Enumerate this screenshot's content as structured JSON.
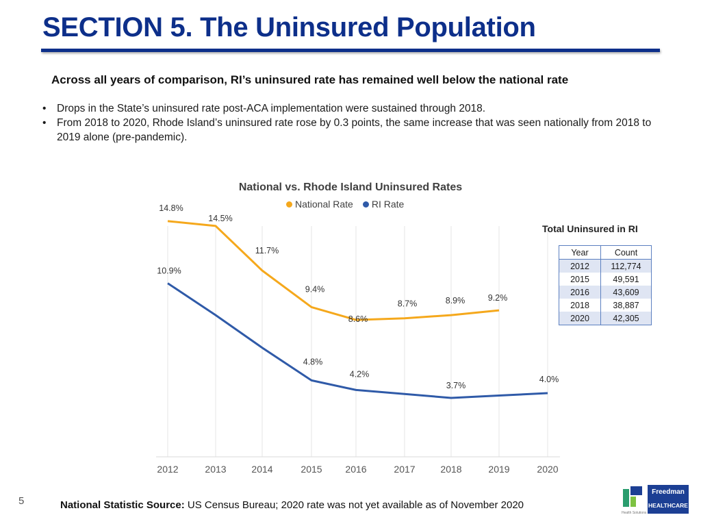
{
  "header": {
    "title": "SECTION 5. The Uninsured Population",
    "subtitle": "Across all years of comparison, RI’s uninsured rate has remained well below the national rate"
  },
  "bullets": [
    "Drops in the State’s uninsured rate post-ACA implementation were sustained through 2018.",
    "From 2018 to 2020, Rhode Island’s uninsured rate rose by 0.3 points, the same increase that was seen nationally from 2018 to 2019 alone (pre-pandemic)."
  ],
  "chart_data": {
    "type": "line",
    "title": "National vs. Rhode Island Uninsured Rates",
    "categories": [
      "2012",
      "2013",
      "2014",
      "2015",
      "2016",
      "2017",
      "2018",
      "2019",
      "2020"
    ],
    "series": [
      {
        "name": "National Rate",
        "color": "#f5a81c",
        "values": [
          14.8,
          14.5,
          11.7,
          9.4,
          8.6,
          8.7,
          8.9,
          9.2,
          null
        ],
        "labels": [
          "14.8%",
          "14.5%",
          "11.7%",
          "9.4%",
          "8.6%",
          "8.7%",
          "8.9%",
          "9.2%",
          ""
        ]
      },
      {
        "name": "RI Rate",
        "color": "#2f5aa8",
        "values": [
          10.9,
          null,
          null,
          4.8,
          4.2,
          null,
          3.7,
          null,
          4.0
        ],
        "line_values": [
          10.9,
          8.9,
          6.85,
          4.8,
          4.2,
          3.95,
          3.7,
          3.85,
          4.0
        ],
        "labels": [
          "10.9%",
          "",
          "",
          "4.8%",
          "4.2%",
          "",
          "3.7%",
          "",
          "4.0%"
        ]
      }
    ],
    "ylim": [
      0,
      16
    ],
    "xlabel": "",
    "ylabel": "",
    "grid": "vertical",
    "legend": "top-center"
  },
  "table": {
    "title": "Total Uninsured in RI",
    "headers": [
      "Year",
      "Count"
    ],
    "rows": [
      [
        "2012",
        "112,774"
      ],
      [
        "2015",
        "49,591"
      ],
      [
        "2016",
        "43,609"
      ],
      [
        "2018",
        "38,887"
      ],
      [
        "2020",
        "42,305"
      ]
    ]
  },
  "footer": {
    "page_number": "5",
    "source_label": "National Statistic Source:",
    "source_text": " US Census Bureau; 2020 rate was not yet available as of November 2020"
  },
  "logo": {
    "name": "Freedman",
    "sub": "HEALTHCARE",
    "tag": "Health Solutions"
  }
}
